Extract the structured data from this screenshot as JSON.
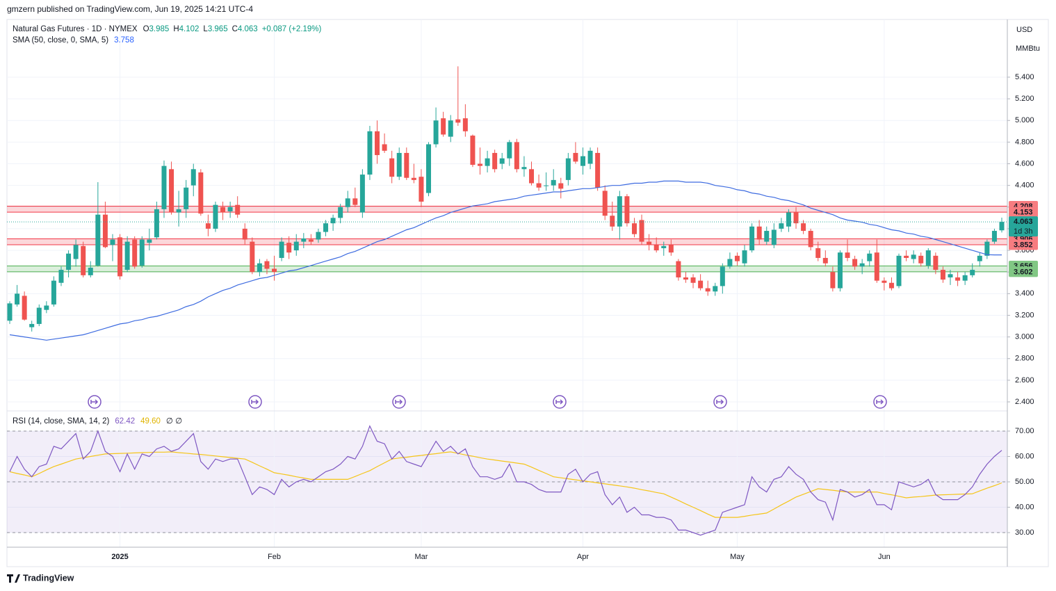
{
  "header": {
    "text": "gmzern published on TradingView.com, Jun 19, 2025 14:21 UTC-4"
  },
  "footer": {
    "logo": "TradingView"
  },
  "chart_data": {
    "type": "candlestick",
    "name": "Natural Gas Futures · 1D · NYMEX",
    "ohlc_labels": [
      "O",
      "H",
      "L",
      "C"
    ],
    "change": "+0.087 (+2.19%)",
    "currency": "USD",
    "unit": "MMBtu",
    "countdown": "1d 3h",
    "up_color": "#26a69a",
    "down_color": "#ef5350",
    "ylim": [
      2.323,
      5.933
    ],
    "yticks": [
      {
        "value": 2.4,
        "label": "2.400"
      },
      {
        "value": 2.6,
        "label": "2.600"
      },
      {
        "value": 2.8,
        "label": "2.800"
      },
      {
        "value": 3.0,
        "label": "3.000"
      },
      {
        "value": 3.2,
        "label": "3.200"
      },
      {
        "value": 3.4,
        "label": "3.400"
      },
      {
        "value": 3.6,
        "label": "3.600"
      },
      {
        "value": 3.8,
        "label": "3.800"
      },
      {
        "value": 4.0,
        "label": "4.000"
      },
      {
        "value": 4.2,
        "label": "4.200"
      },
      {
        "value": 4.4,
        "label": "4.400"
      },
      {
        "value": 4.6,
        "label": "4.600"
      },
      {
        "value": 4.8,
        "label": "4.800"
      },
      {
        "value": 5.0,
        "label": "5.000"
      },
      {
        "value": 5.2,
        "label": "5.200"
      },
      {
        "value": 5.4,
        "label": "5.400"
      }
    ],
    "grid": true,
    "zones": [
      {
        "low": 4.153,
        "high": 4.208,
        "color": "#f23645"
      },
      {
        "low": 3.852,
        "high": 3.906,
        "color": "#f23645"
      },
      {
        "low": 3.602,
        "high": 3.656,
        "color": "#4caf50"
      }
    ],
    "categories": [
      null,
      null,
      null,
      null,
      null,
      null,
      null,
      null,
      null,
      null,
      null,
      null,
      null,
      null,
      null,
      "2025",
      null,
      null,
      null,
      null,
      null,
      null,
      null,
      null,
      null,
      null,
      null,
      null,
      null,
      null,
      null,
      null,
      null,
      null,
      null,
      null,
      "Feb",
      null,
      null,
      null,
      null,
      null,
      null,
      null,
      null,
      null,
      null,
      null,
      null,
      null,
      null,
      null,
      null,
      null,
      null,
      null,
      "Mar",
      null,
      null,
      null,
      null,
      null,
      null,
      null,
      null,
      null,
      null,
      null,
      null,
      null,
      null,
      null,
      null,
      null,
      null,
      null,
      null,
      null,
      "Apr",
      null,
      null,
      null,
      null,
      null,
      null,
      null,
      null,
      null,
      null,
      null,
      null,
      null,
      null,
      null,
      null,
      null,
      null,
      null,
      null,
      "May",
      null,
      null,
      null,
      null,
      null,
      null,
      null,
      null,
      null,
      null,
      null,
      null,
      null,
      null,
      null,
      null,
      null,
      null,
      null,
      "Jun",
      null,
      null,
      null,
      null,
      null,
      null,
      null,
      null,
      null,
      null,
      null,
      null,
      null,
      null
    ],
    "candles": [
      [
        3.15,
        3.33,
        3.12,
        3.31
      ],
      [
        3.3,
        3.48,
        3.28,
        3.4
      ],
      [
        3.38,
        3.42,
        3.15,
        3.16
      ],
      [
        3.09,
        3.15,
        3.05,
        3.12
      ],
      [
        3.12,
        3.3,
        3.1,
        3.27
      ],
      [
        3.25,
        3.33,
        3.22,
        3.29
      ],
      [
        3.3,
        3.56,
        3.28,
        3.52
      ],
      [
        3.5,
        3.65,
        3.47,
        3.62
      ],
      [
        3.62,
        3.8,
        3.55,
        3.77
      ],
      [
        3.72,
        3.9,
        3.65,
        3.85
      ],
      [
        3.84,
        3.88,
        3.55,
        3.57
      ],
      [
        3.57,
        3.7,
        3.55,
        3.64
      ],
      [
        3.66,
        4.43,
        3.65,
        4.13
      ],
      [
        4.13,
        4.25,
        3.82,
        3.83
      ],
      [
        3.85,
        3.95,
        3.7,
        3.9
      ],
      [
        3.92,
        3.95,
        3.53,
        3.56
      ],
      [
        3.62,
        3.93,
        3.6,
        3.88
      ],
      [
        3.9,
        3.93,
        3.63,
        3.65
      ],
      [
        3.66,
        3.93,
        3.64,
        3.9
      ],
      [
        3.87,
        4.0,
        3.8,
        3.9
      ],
      [
        3.92,
        4.25,
        3.9,
        4.18
      ],
      [
        4.18,
        4.63,
        4.1,
        4.58
      ],
      [
        4.55,
        4.62,
        4.13,
        4.15
      ],
      [
        4.15,
        4.35,
        4.02,
        4.18
      ],
      [
        4.18,
        4.45,
        4.1,
        4.38
      ],
      [
        4.4,
        4.6,
        4.3,
        4.55
      ],
      [
        4.52,
        4.55,
        4.12,
        4.14
      ],
      [
        4.05,
        4.13,
        3.93,
        4.0
      ],
      [
        4.0,
        4.25,
        3.97,
        4.22
      ],
      [
        4.2,
        4.25,
        4.08,
        4.15
      ],
      [
        4.16,
        4.25,
        4.1,
        4.2
      ],
      [
        4.22,
        4.3,
        4.1,
        4.13
      ],
      [
        4.0,
        4.05,
        3.85,
        3.9
      ],
      [
        3.88,
        3.92,
        3.58,
        3.6
      ],
      [
        3.6,
        3.72,
        3.56,
        3.68
      ],
      [
        3.7,
        3.72,
        3.58,
        3.63
      ],
      [
        3.63,
        3.75,
        3.52,
        3.6
      ],
      [
        3.73,
        3.92,
        3.7,
        3.88
      ],
      [
        3.87,
        3.93,
        3.72,
        3.78
      ],
      [
        3.8,
        3.95,
        3.75,
        3.88
      ],
      [
        3.88,
        3.96,
        3.82,
        3.91
      ],
      [
        3.9,
        3.95,
        3.85,
        3.88
      ],
      [
        3.9,
        4.0,
        3.87,
        3.97
      ],
      [
        3.97,
        4.08,
        3.93,
        4.05
      ],
      [
        4.05,
        4.13,
        3.98,
        4.1
      ],
      [
        4.1,
        4.23,
        4.05,
        4.2
      ],
      [
        4.2,
        4.35,
        4.15,
        4.28
      ],
      [
        4.28,
        4.38,
        4.2,
        4.22
      ],
      [
        4.15,
        4.55,
        4.1,
        4.5
      ],
      [
        4.5,
        4.95,
        4.45,
        4.9
      ],
      [
        4.9,
        5.0,
        4.6,
        4.68
      ],
      [
        4.78,
        4.88,
        4.7,
        4.72
      ],
      [
        4.65,
        4.72,
        4.42,
        4.48
      ],
      [
        4.48,
        4.75,
        4.45,
        4.7
      ],
      [
        4.7,
        4.75,
        4.45,
        4.47
      ],
      [
        4.47,
        4.6,
        4.42,
        4.45
      ],
      [
        4.48,
        4.55,
        4.2,
        4.25
      ],
      [
        4.33,
        4.8,
        4.3,
        4.78
      ],
      [
        4.78,
        5.12,
        4.75,
        5.0
      ],
      [
        5.02,
        5.08,
        4.85,
        4.87
      ],
      [
        4.85,
        5.05,
        4.8,
        5.0
      ],
      [
        5.01,
        5.5,
        4.95,
        4.98
      ],
      [
        5.02,
        5.15,
        4.85,
        4.9
      ],
      [
        4.86,
        4.87,
        4.57,
        4.59
      ],
      [
        4.6,
        4.75,
        4.5,
        4.58
      ],
      [
        4.58,
        4.72,
        4.52,
        4.65
      ],
      [
        4.7,
        4.73,
        4.52,
        4.55
      ],
      [
        4.6,
        4.7,
        4.55,
        4.65
      ],
      [
        4.65,
        4.82,
        4.58,
        4.8
      ],
      [
        4.8,
        4.83,
        4.52,
        4.55
      ],
      [
        4.55,
        4.67,
        4.48,
        4.57
      ],
      [
        4.55,
        4.62,
        4.4,
        4.42
      ],
      [
        4.42,
        4.5,
        4.35,
        4.38
      ],
      [
        4.4,
        4.52,
        4.35,
        4.4
      ],
      [
        4.4,
        4.55,
        4.35,
        4.45
      ],
      [
        4.42,
        4.47,
        4.28,
        4.37
      ],
      [
        4.45,
        4.7,
        4.4,
        4.65
      ],
      [
        4.7,
        4.8,
        4.6,
        4.62
      ],
      [
        4.58,
        4.75,
        4.5,
        4.67
      ],
      [
        4.6,
        4.75,
        4.55,
        4.72
      ],
      [
        4.7,
        4.75,
        4.35,
        4.38
      ],
      [
        4.35,
        4.4,
        4.08,
        4.12
      ],
      [
        4.12,
        4.25,
        3.98,
        4.02
      ],
      [
        4.02,
        4.35,
        3.9,
        4.3
      ],
      [
        4.3,
        4.32,
        4.02,
        4.05
      ],
      [
        4.05,
        4.1,
        3.92,
        3.95
      ],
      [
        4.08,
        4.13,
        3.85,
        3.88
      ],
      [
        3.88,
        3.95,
        3.8,
        3.85
      ],
      [
        3.85,
        3.92,
        3.78,
        3.8
      ],
      [
        3.82,
        3.88,
        3.75,
        3.84
      ],
      [
        3.85,
        3.9,
        3.75,
        3.78
      ],
      [
        3.7,
        3.72,
        3.52,
        3.55
      ],
      [
        3.55,
        3.6,
        3.5,
        3.53
      ],
      [
        3.55,
        3.58,
        3.45,
        3.5
      ],
      [
        3.52,
        3.58,
        3.43,
        3.45
      ],
      [
        3.45,
        3.52,
        3.38,
        3.42
      ],
      [
        3.42,
        3.5,
        3.38,
        3.47
      ],
      [
        3.47,
        3.68,
        3.4,
        3.65
      ],
      [
        3.65,
        3.78,
        3.63,
        3.72
      ],
      [
        3.75,
        3.78,
        3.66,
        3.7
      ],
      [
        3.68,
        3.85,
        3.65,
        3.8
      ],
      [
        3.8,
        4.05,
        3.78,
        4.02
      ],
      [
        4.02,
        4.08,
        3.85,
        3.9
      ],
      [
        3.88,
        4.02,
        3.85,
        3.98
      ],
      [
        3.85,
        4.05,
        3.82,
        3.99
      ],
      [
        4.0,
        4.1,
        3.97,
        4.05
      ],
      [
        4.02,
        4.18,
        3.97,
        4.15
      ],
      [
        4.15,
        4.2,
        4.0,
        4.05
      ],
      [
        4.05,
        4.08,
        3.95,
        3.98
      ],
      [
        3.98,
        4.0,
        3.8,
        3.83
      ],
      [
        3.82,
        3.88,
        3.7,
        3.73
      ],
      [
        3.73,
        3.8,
        3.65,
        3.68
      ],
      [
        3.6,
        3.65,
        3.42,
        3.45
      ],
      [
        3.45,
        3.8,
        3.42,
        3.78
      ],
      [
        3.78,
        3.9,
        3.7,
        3.73
      ],
      [
        3.72,
        3.75,
        3.62,
        3.65
      ],
      [
        3.65,
        3.72,
        3.58,
        3.68
      ],
      [
        3.7,
        3.8,
        3.65,
        3.77
      ],
      [
        3.78,
        3.9,
        3.5,
        3.52
      ],
      [
        3.52,
        3.55,
        3.43,
        3.5
      ],
      [
        3.5,
        3.55,
        3.43,
        3.45
      ],
      [
        3.47,
        3.77,
        3.45,
        3.75
      ],
      [
        3.75,
        3.8,
        3.7,
        3.73
      ],
      [
        3.72,
        3.8,
        3.68,
        3.76
      ],
      [
        3.75,
        3.78,
        3.65,
        3.68
      ],
      [
        3.66,
        3.82,
        3.63,
        3.8
      ],
      [
        3.75,
        3.78,
        3.58,
        3.62
      ],
      [
        3.62,
        3.65,
        3.5,
        3.53
      ],
      [
        3.55,
        3.62,
        3.48,
        3.58
      ],
      [
        3.55,
        3.6,
        3.47,
        3.52
      ],
      [
        3.52,
        3.6,
        3.48,
        3.57
      ],
      [
        3.57,
        3.68,
        3.55,
        3.62
      ],
      [
        3.7,
        3.78,
        3.65,
        3.75
      ],
      [
        3.75,
        3.9,
        3.72,
        3.88
      ],
      [
        3.88,
        4.0,
        3.86,
        3.98
      ],
      [
        3.985,
        4.102,
        3.965,
        4.063
      ]
    ],
    "sma": {
      "name": "SMA (50, close, 0, SMA, 5)",
      "color": "#3d6be0",
      "values": [
        3.02,
        3.01,
        3.0,
        2.99,
        2.98,
        2.97,
        2.98,
        2.99,
        3.0,
        3.01,
        3.02,
        3.04,
        3.06,
        3.08,
        3.1,
        3.12,
        3.13,
        3.15,
        3.16,
        3.18,
        3.19,
        3.21,
        3.23,
        3.25,
        3.28,
        3.3,
        3.33,
        3.37,
        3.4,
        3.43,
        3.45,
        3.48,
        3.5,
        3.52,
        3.54,
        3.55,
        3.57,
        3.59,
        3.61,
        3.62,
        3.64,
        3.66,
        3.68,
        3.7,
        3.72,
        3.74,
        3.77,
        3.79,
        3.82,
        3.85,
        3.88,
        3.9,
        3.93,
        3.96,
        3.99,
        4.01,
        4.04,
        4.07,
        4.1,
        4.12,
        4.15,
        4.17,
        4.19,
        4.21,
        4.22,
        4.23,
        4.25,
        4.26,
        4.27,
        4.28,
        4.3,
        4.31,
        4.32,
        4.33,
        4.34,
        4.34,
        4.35,
        4.36,
        4.37,
        4.37,
        4.38,
        4.39,
        4.4,
        4.4,
        4.41,
        4.42,
        4.42,
        4.43,
        4.43,
        4.44,
        4.44,
        4.44,
        4.43,
        4.43,
        4.43,
        4.42,
        4.4,
        4.39,
        4.38,
        4.36,
        4.35,
        4.33,
        4.32,
        4.3,
        4.29,
        4.27,
        4.26,
        4.24,
        4.22,
        4.19,
        4.17,
        4.15,
        4.13,
        4.1,
        4.08,
        4.07,
        4.06,
        4.04,
        4.03,
        4.01,
        3.99,
        3.98,
        3.96,
        3.95,
        3.93,
        3.92,
        3.9,
        3.88,
        3.86,
        3.84,
        3.82,
        3.8,
        3.78,
        3.76,
        3.758,
        3.758
      ]
    },
    "rsi": {
      "name": "RSI (14, close, SMA, 14, 2)",
      "color": "#7e57c2",
      "ma_color": "#f5c518",
      "extra": "∅ ∅",
      "ylim": [
        24.25,
        77.67
      ],
      "yticks": [
        {
          "value": 30,
          "label": "30.00"
        },
        {
          "value": 40,
          "label": "40.00"
        },
        {
          "value": 50,
          "label": "50.00"
        },
        {
          "value": 60,
          "label": "60.00"
        },
        {
          "value": 70,
          "label": "70.00"
        }
      ],
      "levels": [
        70,
        50,
        30
      ],
      "values": [
        54,
        60,
        55,
        52,
        56,
        57,
        64,
        63,
        66,
        69,
        59,
        62,
        70,
        62,
        60,
        54,
        61,
        55,
        61,
        60,
        63,
        64,
        62,
        63,
        66,
        69,
        58,
        55,
        59,
        58,
        59,
        59,
        52,
        45,
        48,
        47,
        45,
        51,
        48,
        50,
        51,
        50,
        52,
        54,
        55,
        57,
        60,
        59,
        64,
        72,
        66,
        65,
        59,
        62,
        58,
        57,
        56,
        61,
        66,
        62,
        64,
        61,
        63,
        56,
        52,
        52,
        51,
        52,
        57,
        50,
        50,
        49,
        47,
        46,
        46,
        46,
        53,
        55,
        50,
        53,
        54,
        45,
        41,
        44,
        38,
        40,
        37,
        37,
        36,
        36,
        35,
        31,
        31,
        30,
        29,
        30,
        31,
        38,
        39,
        40,
        41,
        52,
        48,
        46,
        51,
        52,
        56,
        53,
        51,
        46,
        43,
        42,
        35,
        47,
        46,
        44,
        45,
        47,
        41,
        41,
        39,
        50,
        49,
        48,
        49,
        51,
        45,
        43,
        43,
        43,
        45,
        48,
        53,
        57,
        60,
        62.42
      ],
      "ma_values": [
        54,
        53.3,
        52.7,
        52,
        53.3,
        54.7,
        56,
        57,
        58,
        59,
        59.5,
        60,
        60.5,
        61,
        61.1,
        61.2,
        61.3,
        61.4,
        61.5,
        61.6,
        61.7,
        61.7,
        61.8,
        61.5,
        61.3,
        61,
        60.8,
        60.5,
        60.2,
        59.9,
        59.6,
        59.3,
        59,
        57.7,
        56.3,
        55,
        53.6,
        53.1,
        52.6,
        52,
        51.5,
        51,
        51,
        51,
        51,
        51,
        51,
        52.1,
        53.3,
        54.4,
        56,
        57.5,
        59,
        59.4,
        59.7,
        60.1,
        60.4,
        60.8,
        61.1,
        61.5,
        61.8,
        61.2,
        60.6,
        60.1,
        59.5,
        59,
        58.6,
        58.2,
        57.8,
        57.4,
        57,
        55.8,
        54.5,
        53.3,
        52,
        51.6,
        51.2,
        50.8,
        50.4,
        50,
        49.6,
        49.2,
        48.8,
        48.4,
        48,
        47.5,
        46.9,
        46.4,
        45.8,
        45.3,
        44,
        42.7,
        41.3,
        40,
        38.7,
        37.3,
        36,
        36,
        36,
        36,
        36.4,
        36.9,
        37.3,
        37.7,
        39.3,
        40.9,
        42.4,
        44,
        45.1,
        46.2,
        47.3,
        47,
        46.7,
        46.3,
        46,
        46,
        46,
        46,
        46,
        45.4,
        44.9,
        44.3,
        43.7,
        44,
        44.2,
        44.5,
        44.8,
        44.9,
        45,
        45.1,
        45.2,
        45.3,
        46.4,
        47.5,
        48.5,
        49.6
      ],
      "ma_last_label": "49.60"
    }
  }
}
